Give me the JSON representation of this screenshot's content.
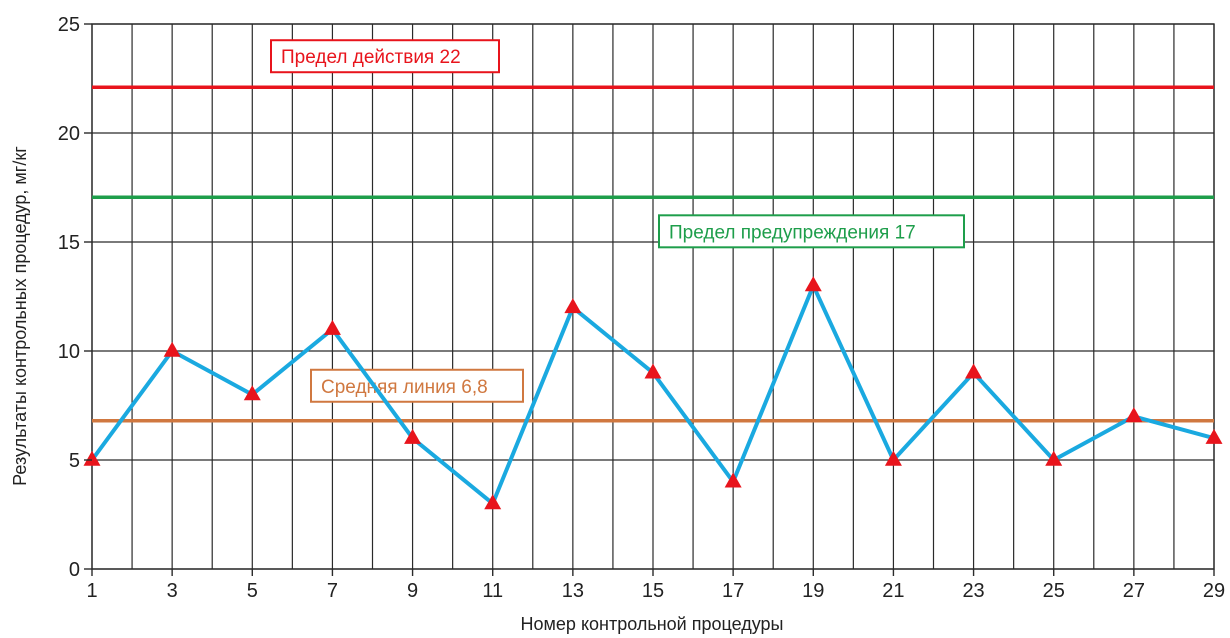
{
  "chart_data": {
    "type": "line",
    "xlabel": "Номер контрольной процедуры",
    "ylabel": "Результаты контрольных процедур, мг/кг",
    "x": [
      1,
      3,
      5,
      7,
      9,
      11,
      13,
      15,
      17,
      19,
      21,
      23,
      25,
      27,
      29
    ],
    "xticks": [
      "1",
      "3",
      "5",
      "7",
      "9",
      "11",
      "13",
      "15",
      "17",
      "19",
      "21",
      "23",
      "25",
      "27",
      "29"
    ],
    "yticks": [
      "0",
      "5",
      "10",
      "15",
      "20",
      "25"
    ],
    "ylim": [
      0,
      25
    ],
    "xlim": [
      1,
      29
    ],
    "grid": true,
    "series": [
      {
        "values": [
          5,
          10,
          8,
          11,
          6,
          3,
          12,
          9,
          4,
          13,
          5,
          9,
          5,
          7,
          6
        ],
        "color": "#1aa9e0",
        "marker": "triangle",
        "marker_color": "#e8141c"
      }
    ],
    "reference_lines": [
      {
        "label": "Предел действия 22",
        "value": 22.1,
        "color": "#e8141c"
      },
      {
        "label": "Предел предупреждения 17",
        "value": 17.05,
        "color": "#1e9e4b"
      },
      {
        "label": "Средняя линия 6,8",
        "value": 6.8,
        "color": "#d07840"
      }
    ]
  }
}
